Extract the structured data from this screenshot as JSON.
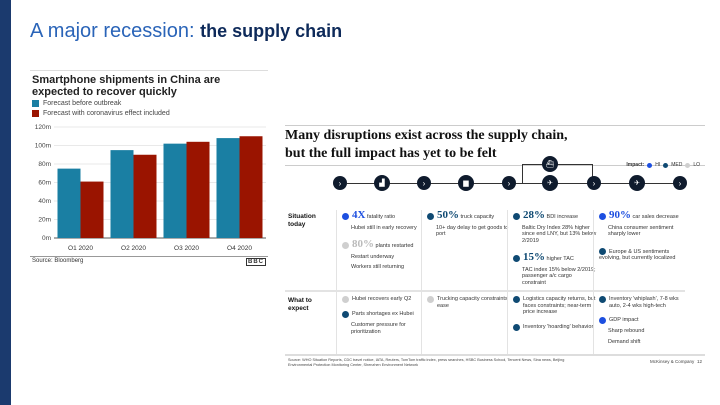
{
  "slide": {
    "title_light": "A major recession: ",
    "title_bold": "the supply chain",
    "colors": {
      "sidebar": "#1b3a6e",
      "title": "#2a64b8"
    }
  },
  "chart_data": {
    "type": "bar",
    "title": "Smartphone shipments in China are expected to recover quickly",
    "categories": [
      "Q1 2020",
      "Q2 2020",
      "Q3 2020",
      "Q4 2020"
    ],
    "series": [
      {
        "name": "Forecast before outbreak",
        "color": "#1a7fa3",
        "values": [
          75,
          95,
          102,
          108
        ]
      },
      {
        "name": "Forecast with coronavirus effect included",
        "color": "#9a1400",
        "values": [
          61,
          90,
          104,
          110
        ]
      }
    ],
    "yticks": [
      "0m",
      "20m",
      "40m",
      "60m",
      "80m",
      "100m",
      "120m"
    ],
    "ylim": [
      0,
      120
    ],
    "ylabel": "",
    "xlabel": "",
    "grid": true,
    "legend": "top-left",
    "source": "Source: Bloomberg",
    "logo": "BBC"
  },
  "diagram": {
    "title1": "Many disruptions exist across the supply chain,",
    "title2": "but the full impact has yet to be felt",
    "impact_label": "Impact:",
    "impact_levels": [
      "HI",
      "MED",
      "LO"
    ],
    "impact_colors": {
      "HI": "#1d4fe0",
      "MED": "#0f4a73",
      "LO": "#cfcfcf"
    },
    "row_labels": [
      "Situation today",
      "What to expect"
    ],
    "columns": [
      {
        "situation": [
          {
            "impact": "HI",
            "big": "4X",
            "label": "fatality ratio",
            "lines": [
              "Hubei still in early recovery"
            ]
          },
          {
            "impact": "LO",
            "big": "80%",
            "label": "plants restarted",
            "lines": [
              "Restart underway",
              "Workers still returning"
            ]
          }
        ],
        "expect": [
          {
            "impact": "LO",
            "text": "Hubei recovers early Q2",
            "lines": []
          },
          {
            "impact": "MED",
            "text": "Parts shortages ex Hubei",
            "lines": [
              "Customer pressure for prioritization"
            ]
          }
        ]
      },
      {
        "situation": [
          {
            "impact": "MED",
            "big": "50%",
            "label": "truck capacity",
            "lines": [
              "10+ day delay to get goods to port"
            ]
          }
        ],
        "expect": [
          {
            "impact": "LO",
            "text": "Trucking capacity constraints ease",
            "lines": []
          }
        ]
      },
      {
        "situation": [
          {
            "impact": "MED",
            "big": "28%",
            "label": "BDI increase",
            "lines": [
              "Baltic Dry Index 28% higher since end LNY, but 13% below 2/2019"
            ]
          },
          {
            "impact": "MED",
            "big": "15%",
            "label": "higher TAC",
            "lines": [
              "TAC index 15% below 2/2019; passenger a/c cargo constraint"
            ]
          }
        ],
        "expect": [
          {
            "impact": "MED",
            "text": "Logistics capacity returns, but faces constraints; near-term price increase",
            "lines": []
          },
          {
            "impact": "MED",
            "text": "Inventory 'hoarding' behavior",
            "lines": []
          }
        ]
      },
      {
        "situation": [
          {
            "impact": "HI",
            "big": "90%",
            "label": "car sales decrease",
            "lines": [
              "China consumer sentiment sharply lower"
            ]
          },
          {
            "impact": "MED",
            "big": "",
            "label": "Europe & US sentiments evolving, but currently localized",
            "lines": []
          }
        ],
        "expect": [
          {
            "impact": "MED",
            "text": "Inventory 'whiplash', 7-8 wks auto, 2-4 wks high-tech",
            "lines": []
          },
          {
            "impact": "HI",
            "text": "GDP impact",
            "lines": [
              "Sharp rebound",
              "Demand shift"
            ]
          }
        ]
      }
    ],
    "icons": [
      "factory-icon",
      "truck-icon",
      "ship-icon",
      "plane-icon",
      "shopping-cart-icon"
    ],
    "source": "Source: WHO Situation Reports, CDC travel notice, IATA, Reuters, TomTom traffic index, press searches, HSBC Business School, Tencent News, Sina news, Beijing Environmental Protection Monitoring Center, Shenzhen Environment Network",
    "company": "McKinsey & Company",
    "page": "12"
  }
}
